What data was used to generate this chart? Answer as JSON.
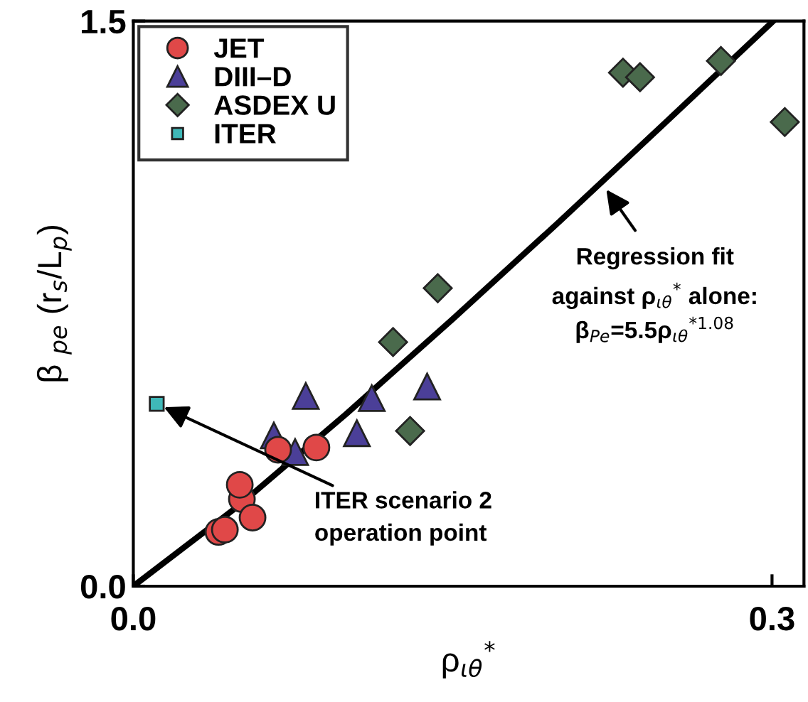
{
  "chart_data": {
    "type": "scatter",
    "xlabel": "ρ$_{ιθ}$$^{*}$",
    "ylabel": "β $_{pe}$ (r$_{s}$/L$_{p}$)",
    "xlim": [
      0,
      0.315
    ],
    "ylim": [
      0,
      1.5
    ],
    "xticks": [
      {
        "value": 0,
        "label": "0.0"
      },
      {
        "value": 0.3,
        "label": "0.3"
      }
    ],
    "yticks": [
      {
        "value": 0,
        "label": "0.0"
      },
      {
        "value": 1.5,
        "label": "1.5"
      }
    ],
    "grid": false,
    "legend": "top left",
    "series": [
      {
        "name": "JET",
        "color": "#e04848",
        "marker": "circle",
        "x": [
          0.04,
          0.043,
          0.051,
          0.056,
          0.05,
          0.068,
          0.086
        ],
        "values": [
          0.144,
          0.15,
          0.231,
          0.182,
          0.269,
          0.362,
          0.368
        ]
      },
      {
        "name": "DIII–D",
        "color": "#4b3f98",
        "marker": "triangle",
        "x": [
          0.066,
          0.076,
          0.081,
          0.105,
          0.112,
          0.138
        ],
        "values": [
          0.4,
          0.356,
          0.505,
          0.406,
          0.499,
          0.53
        ]
      },
      {
        "name": "ASDEX U",
        "color": "#4a6a4c",
        "marker": "diamond",
        "x": [
          0.23,
          0.238,
          0.276,
          0.306,
          0.143,
          0.122,
          0.13
        ],
        "values": [
          1.363,
          1.351,
          1.394,
          1.232,
          0.791,
          0.648,
          0.412
        ]
      },
      {
        "name": "ITER",
        "color": "#3fb8b8",
        "marker": "square",
        "x": [
          0.011
        ],
        "values": [
          0.484
        ]
      },
      {
        "type": "line",
        "color": "#000000",
        "x": [
          0,
          0.05,
          0.1,
          0.15,
          0.2,
          0.25,
          0.3
        ],
        "values": [
          0,
          0.216,
          0.457,
          0.709,
          0.967,
          1.231,
          1.497
        ]
      }
    ],
    "annotations": [
      {
        "text": "Regression fit",
        "x": 0.22,
        "y": 1.07
      },
      "against ρ$_{ιθ}$$^{*}$ alone:",
      "β$_{Pe}$=5.5ρ$_{ιθ}$$^{*1.08}$",
      {
        "text": "ITER scenario 2\noperation point",
        "x": 0.011,
        "y": 0.484
      }
    ]
  }
}
